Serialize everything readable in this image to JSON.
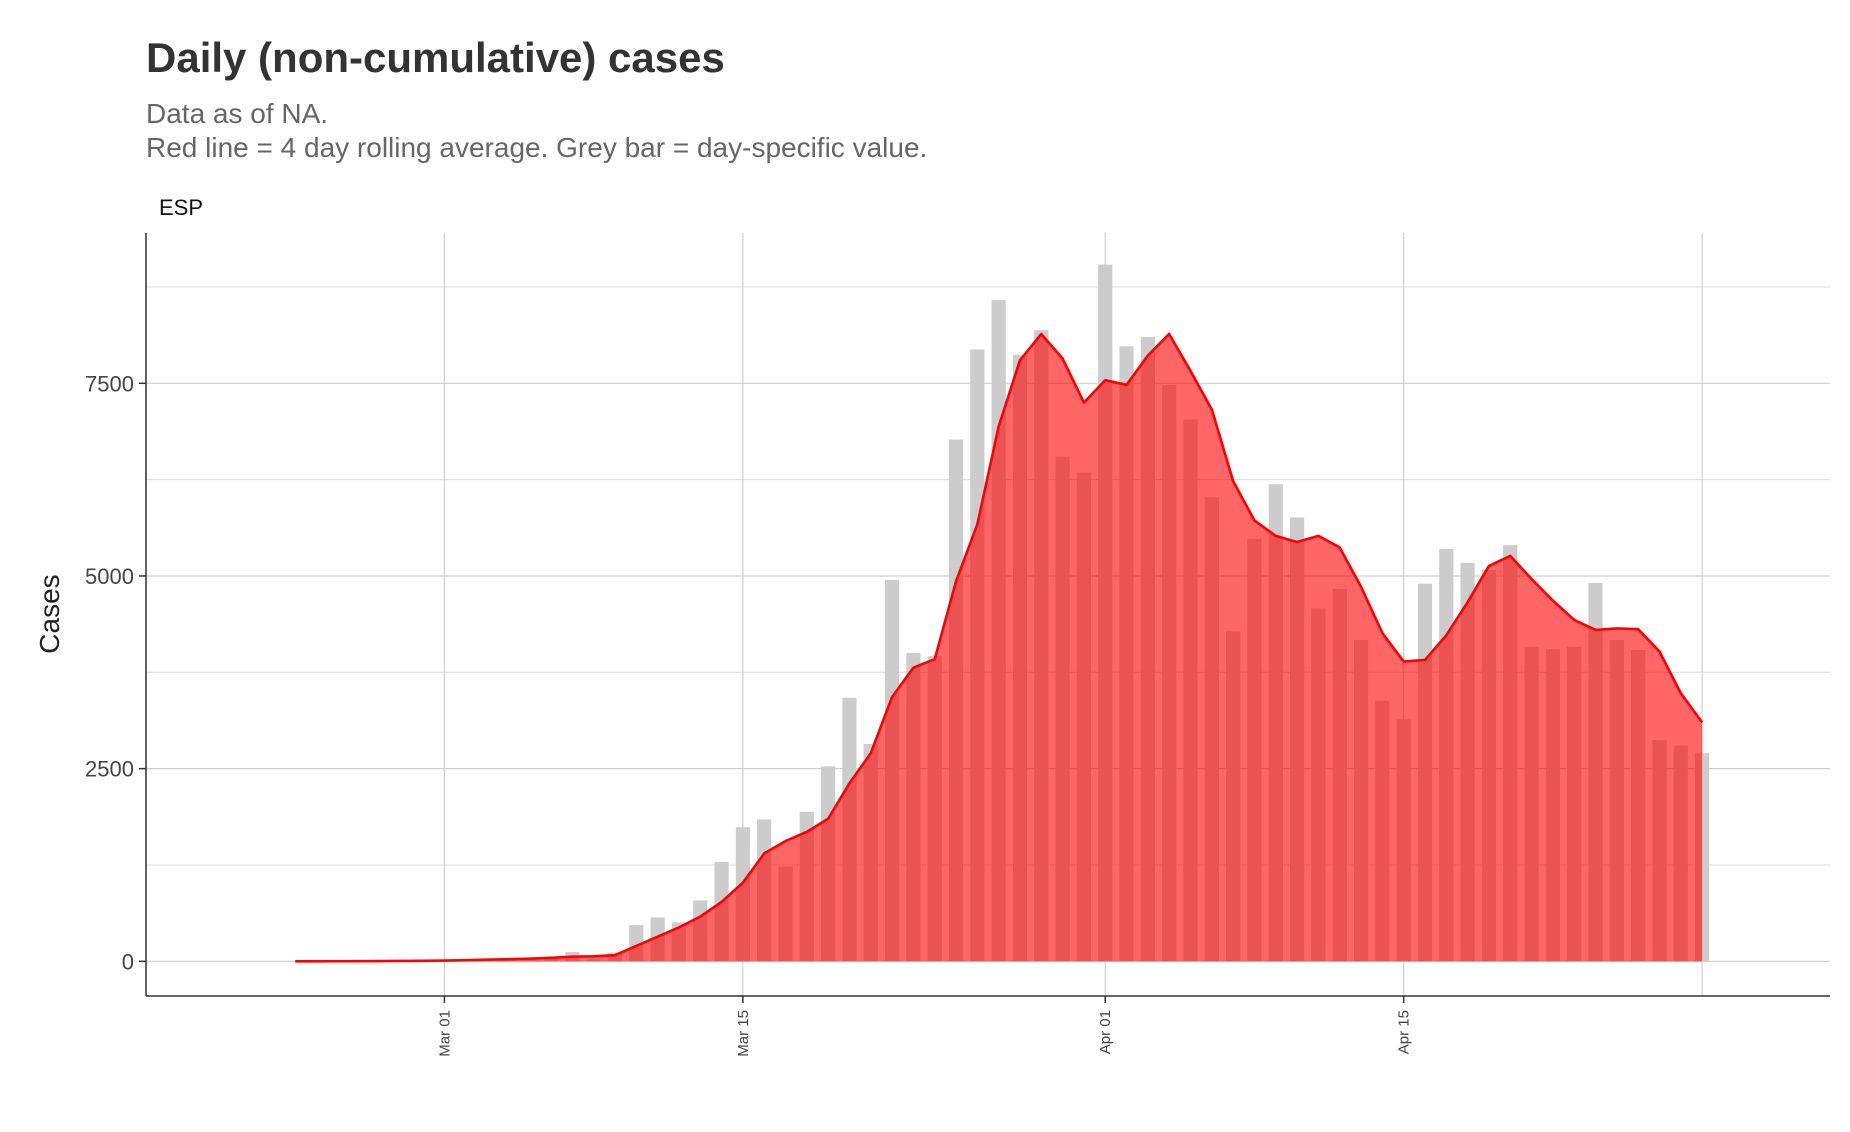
{
  "chart_data": {
    "type": "bar",
    "title": "Daily (non-cumulative) cases",
    "subtitle_lines": [
      "Data as of NA.",
      "Red line = 4 day rolling average. Grey bar = day-specific value."
    ],
    "facet_label": "ESP",
    "xlabel": "",
    "ylabel": "Cases",
    "ylim": [
      -450,
      9450
    ],
    "y_ticks": [
      0,
      2500,
      5000,
      7500
    ],
    "y_tick_labels": [
      "0",
      "2500",
      "5000",
      "7500"
    ],
    "x_ticks": [
      "2020-03-01",
      "2020-03-15",
      "2020-04-01",
      "2020-04-15"
    ],
    "x_tick_labels": [
      "Mar 01",
      "Mar 15",
      "Apr 01",
      "Apr 15"
    ],
    "x_range": [
      "2020-02-16",
      "2020-05-05"
    ],
    "start_date": "2020-02-23",
    "series": [
      {
        "name": "day-specific value",
        "kind": "bar",
        "color": "#cccccc",
        "values": [
          0,
          0,
          2,
          2,
          4,
          8,
          10,
          15,
          20,
          35,
          30,
          45,
          60,
          120,
          25,
          115,
          470,
          570,
          505,
          790,
          1290,
          1740,
          1840,
          1230,
          1940,
          2530,
          3420,
          2820,
          4950,
          4000,
          3960,
          6770,
          7940,
          8580,
          7870,
          8190,
          6550,
          6340,
          9040,
          7980,
          8100,
          7480,
          7030,
          6020,
          4280,
          5480,
          6190,
          5760,
          4580,
          4830,
          4170,
          3380,
          3140,
          4900,
          5350,
          5170,
          5080,
          5400,
          4080,
          4050,
          4080,
          4910,
          4170,
          4040,
          2870,
          2800,
          2700
        ]
      },
      {
        "name": "4 day rolling average",
        "kind": "area",
        "color": "#ff0000",
        "values": [
          0,
          0,
          1,
          2,
          3,
          5,
          7,
          10,
          15,
          22,
          28,
          35,
          45,
          60,
          65,
          80,
          200,
          320,
          440,
          580,
          770,
          1020,
          1400,
          1560,
          1680,
          1850,
          2310,
          2700,
          3430,
          3810,
          3920,
          4930,
          5670,
          6940,
          7800,
          8140,
          7820,
          7250,
          7540,
          7480,
          7860,
          8140,
          7660,
          7160,
          6230,
          5720,
          5520,
          5440,
          5520,
          5370,
          4860,
          4260,
          3890,
          3910,
          4230,
          4660,
          5130,
          5260,
          4960,
          4680,
          4430,
          4300,
          4320,
          4310,
          4020,
          3480,
          3100
        ]
      }
    ]
  }
}
